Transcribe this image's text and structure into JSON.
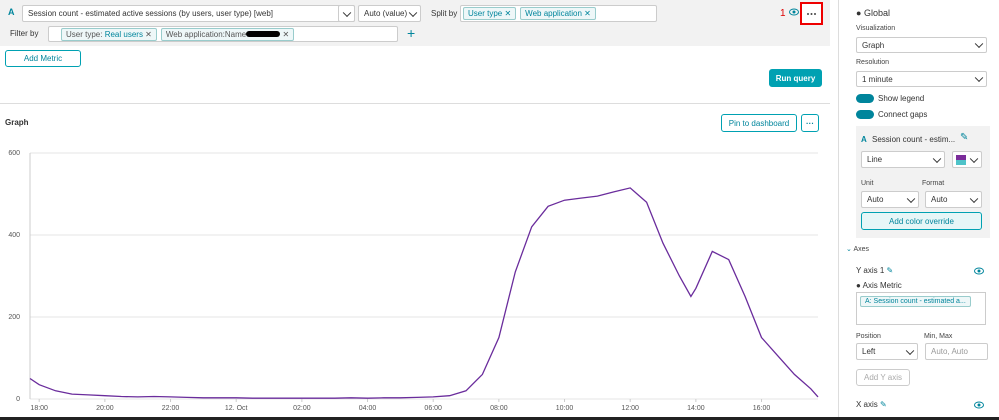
{
  "query": {
    "letter": "A",
    "metric": "Session count - estimated active sessions (by users, user type) [web]",
    "aggregation": "Auto (value)",
    "split_label": "Split by",
    "split_by": [
      "User type",
      "Web application"
    ],
    "filter_label": "Filter by",
    "filters": [
      {
        "key": "User type:",
        "value": "Real users"
      },
      {
        "key": "Web application:Name"
      }
    ],
    "annotation": "1",
    "add_metric": "Add Metric",
    "run_query": "Run query"
  },
  "graph": {
    "pin": "Pin to dashboard"
  },
  "chart_data": {
    "type": "line",
    "title": "Graph",
    "color": "#6a2c9c",
    "x": [
      17.72,
      18,
      18.5,
      19,
      19.5,
      20,
      20.5,
      21,
      21.5,
      22,
      22.5,
      23,
      23.5,
      24,
      24.5,
      25,
      25.5,
      26,
      26.5,
      27,
      27.5,
      28,
      28.5,
      29,
      29.5,
      30,
      30.5,
      31,
      31.5,
      32,
      32.5,
      33,
      33.5,
      34,
      34.5,
      35,
      35.5,
      36,
      36.5,
      37,
      37.5,
      37.85,
      38,
      38.5,
      39,
      39.5,
      40,
      40.5,
      41,
      41.5,
      41.72
    ],
    "values": [
      50,
      35,
      20,
      12,
      10,
      8,
      6,
      5,
      6,
      5,
      4,
      3,
      3,
      3,
      2,
      2,
      2,
      2,
      2,
      2,
      3,
      2,
      3,
      3,
      4,
      5,
      8,
      20,
      60,
      150,
      310,
      420,
      470,
      485,
      490,
      495,
      505,
      515,
      480,
      380,
      300,
      250,
      270,
      360,
      340,
      250,
      150,
      105,
      60,
      25,
      5
    ],
    "xlim": [
      17.72,
      41.72
    ],
    "xticks": [
      {
        "value": 18,
        "label": "18:00"
      },
      {
        "value": 20,
        "label": "20:00"
      },
      {
        "value": 22,
        "label": "22:00"
      },
      {
        "value": 24,
        "label": "12. Oct"
      },
      {
        "value": 26,
        "label": "02:00"
      },
      {
        "value": 28,
        "label": "04:00"
      },
      {
        "value": 30,
        "label": "06:00"
      },
      {
        "value": 32,
        "label": "08:00"
      },
      {
        "value": 34,
        "label": "10:00"
      },
      {
        "value": 36,
        "label": "12:00"
      },
      {
        "value": 38,
        "label": "14:00"
      },
      {
        "value": 40,
        "label": "16:00"
      }
    ],
    "ylim": [
      0,
      600
    ],
    "yticks": [
      0,
      200,
      400,
      600
    ],
    "grid": true
  },
  "panel": {
    "global": "Global",
    "visualization_label": "Visualization",
    "visualization": "Graph",
    "resolution_label": "Resolution",
    "resolution": "1 minute",
    "toggles": [
      "Show legend",
      "Connect gaps"
    ],
    "metric_card": {
      "letter": "A",
      "name": "Session count - estim...",
      "style": "Line",
      "unit_label": "Unit",
      "unit": "Auto",
      "format_label": "Format",
      "format": "Auto",
      "override": "Add color override"
    },
    "axes": "Axes",
    "y_axis": "Y axis 1",
    "axis_metric_label": "Axis Metric",
    "axis_metric": "A: Session count - estimated a...",
    "position_label": "Position",
    "position": "Left",
    "minmax_label": "Min, Max",
    "minmax": "Auto, Auto",
    "add_y_axis": "Add Y axis",
    "x_axis": "X axis"
  }
}
